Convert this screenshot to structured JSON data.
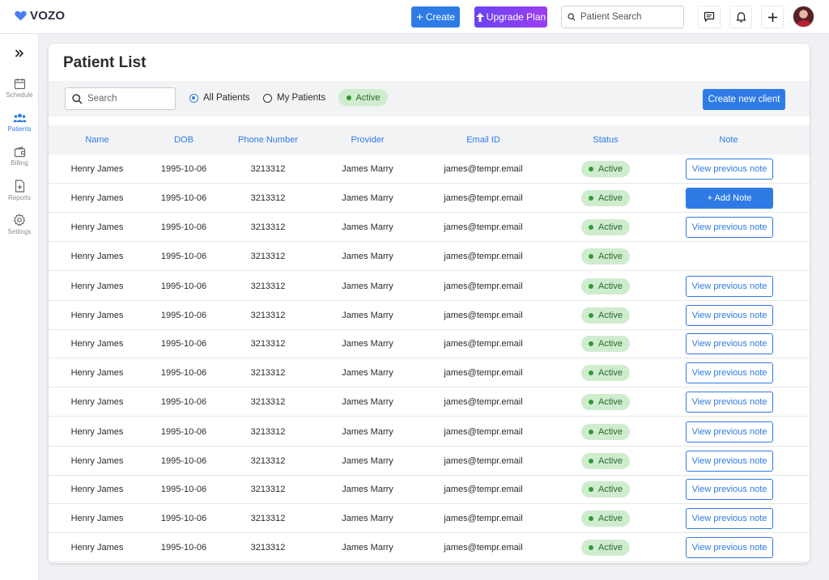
{
  "brand": {
    "name": "VOZO",
    "color": "#2e7be6"
  },
  "header": {
    "create_label": "Create",
    "upgrade_label": "Upgrade Plan",
    "search_placeholder": "Patient Search"
  },
  "sidebar": {
    "items": [
      {
        "label": "Schedule",
        "icon": "calendar-icon",
        "active": false
      },
      {
        "label": "Patients",
        "icon": "users-icon",
        "active": true
      },
      {
        "label": "Billing",
        "icon": "wallet-icon",
        "active": false
      },
      {
        "label": "Reports",
        "icon": "report-icon",
        "active": false
      },
      {
        "label": "Settings",
        "icon": "gear-icon",
        "active": false
      }
    ]
  },
  "main": {
    "title": "Patient List",
    "filters": {
      "search_placeholder": "Search",
      "all_patients_label": "All Patients",
      "my_patients_label": "My Patients",
      "selected": "All Patients",
      "status_chip": "Active",
      "create_client_label": "Create new client"
    },
    "table": {
      "columns": [
        "Name",
        "DOB",
        "Phone Number",
        "Provider",
        "Email ID",
        "Status",
        "Note"
      ],
      "rows": [
        {
          "name": "Henry James",
          "dob": "1995-10-06",
          "phone": "3213312",
          "provider": "James Marry",
          "email": "james@tempr.email",
          "status": "Active",
          "note": "View previous note",
          "note_type": "view"
        },
        {
          "name": "Henry James",
          "dob": "1995-10-06",
          "phone": "3213312",
          "provider": "James Marry",
          "email": "james@tempr.email",
          "status": "Active",
          "note": "+ Add Note",
          "note_type": "add"
        },
        {
          "name": "Henry James",
          "dob": "1995-10-06",
          "phone": "3213312",
          "provider": "James Marry",
          "email": "james@tempr.email",
          "status": "Active",
          "note": "View previous note",
          "note_type": "view"
        },
        {
          "name": "Henry James",
          "dob": "1995-10-06",
          "phone": "3213312",
          "provider": "James Marry",
          "email": "james@tempr.email",
          "status": "Active",
          "note": "",
          "note_type": "none"
        },
        {
          "name": "Henry James",
          "dob": "1995-10-06",
          "phone": "3213312",
          "provider": "James Marry",
          "email": "james@tempr.email",
          "status": "Active",
          "note": "View previous note",
          "note_type": "view"
        },
        {
          "name": "Henry James",
          "dob": "1995-10-06",
          "phone": "3213312",
          "provider": "James Marry",
          "email": "james@tempr.email",
          "status": "Active",
          "note": "View previous note",
          "note_type": "view"
        },
        {
          "name": "Henry James",
          "dob": "1995-10-06",
          "phone": "3213312",
          "provider": "James Marry",
          "email": "james@tempr.email",
          "status": "Active",
          "note": "View previous note",
          "note_type": "view"
        },
        {
          "name": "Henry James",
          "dob": "1995-10-06",
          "phone": "3213312",
          "provider": "James Marry",
          "email": "james@tempr.email",
          "status": "Active",
          "note": "View previous note",
          "note_type": "view"
        },
        {
          "name": "Henry James",
          "dob": "1995-10-06",
          "phone": "3213312",
          "provider": "James Marry",
          "email": "james@tempr.email",
          "status": "Active",
          "note": "View previous note",
          "note_type": "view"
        },
        {
          "name": "Henry James",
          "dob": "1995-10-06",
          "phone": "3213312",
          "provider": "James Marry",
          "email": "james@tempr.email",
          "status": "Active",
          "note": "View previous note",
          "note_type": "view"
        },
        {
          "name": "Henry James",
          "dob": "1995-10-06",
          "phone": "3213312",
          "provider": "James Marry",
          "email": "james@tempr.email",
          "status": "Active",
          "note": "View previous note",
          "note_type": "view"
        },
        {
          "name": "Henry James",
          "dob": "1995-10-06",
          "phone": "3213312",
          "provider": "James Marry",
          "email": "james@tempr.email",
          "status": "Active",
          "note": "View previous note",
          "note_type": "view"
        },
        {
          "name": "Henry James",
          "dob": "1995-10-06",
          "phone": "3213312",
          "provider": "James Marry",
          "email": "james@tempr.email",
          "status": "Active",
          "note": "View previous note",
          "note_type": "view"
        },
        {
          "name": "Henry James",
          "dob": "1995-10-06",
          "phone": "3213312",
          "provider": "James Marry",
          "email": "james@tempr.email",
          "status": "Active",
          "note": "View previous note",
          "note_type": "view"
        }
      ]
    }
  }
}
